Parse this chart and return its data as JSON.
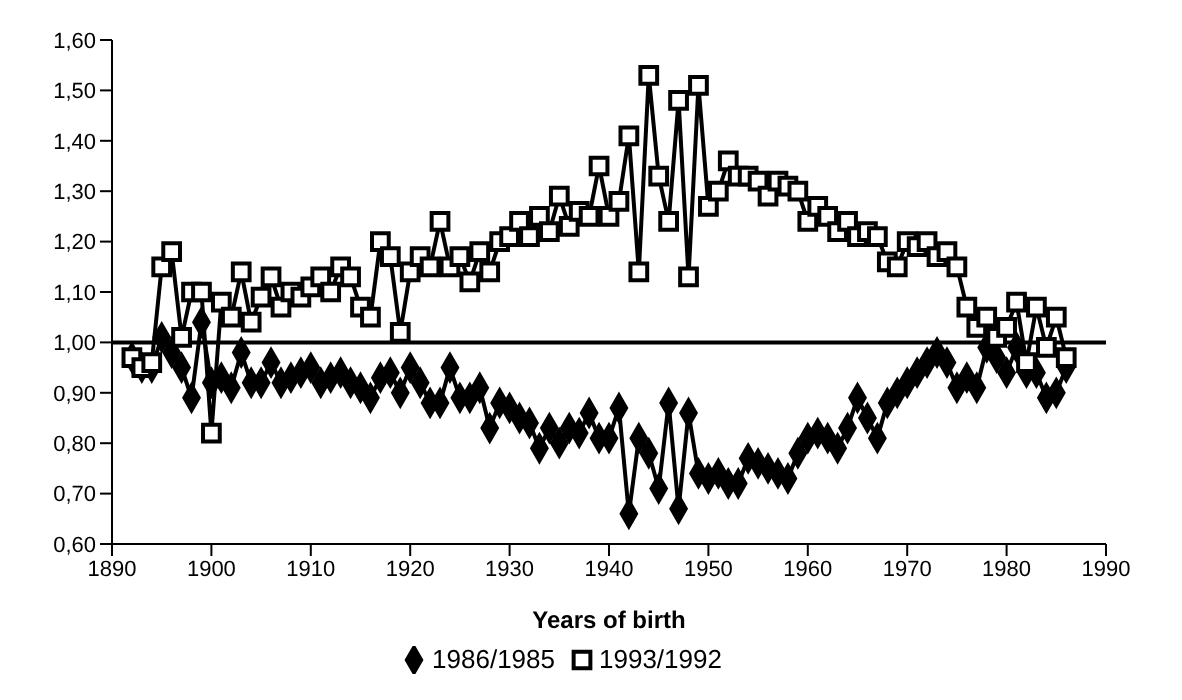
{
  "chart_data": {
    "type": "line",
    "xlabel": "Years of birth",
    "x": [
      1892,
      1893,
      1894,
      1895,
      1896,
      1897,
      1898,
      1899,
      1900,
      1901,
      1902,
      1903,
      1904,
      1905,
      1906,
      1907,
      1908,
      1909,
      1910,
      1911,
      1912,
      1913,
      1914,
      1915,
      1916,
      1917,
      1918,
      1919,
      1920,
      1921,
      1922,
      1923,
      1924,
      1925,
      1926,
      1927,
      1928,
      1929,
      1930,
      1931,
      1932,
      1933,
      1934,
      1935,
      1936,
      1937,
      1938,
      1939,
      1940,
      1941,
      1942,
      1943,
      1944,
      1945,
      1946,
      1947,
      1948,
      1949,
      1950,
      1951,
      1952,
      1953,
      1954,
      1955,
      1956,
      1957,
      1958,
      1959,
      1960,
      1961,
      1962,
      1963,
      1964,
      1965,
      1966,
      1967,
      1968,
      1969,
      1970,
      1971,
      1972,
      1973,
      1974,
      1975,
      1976,
      1977,
      1978,
      1979,
      1980,
      1981,
      1982,
      1983,
      1984,
      1985,
      1986
    ],
    "series": [
      {
        "name": "1986/1985",
        "color": "#000000",
        "marker": "diamond",
        "values": [
          0.97,
          0.95,
          0.95,
          1.01,
          0.98,
          0.95,
          0.89,
          1.04,
          0.92,
          0.93,
          0.91,
          0.98,
          0.92,
          0.92,
          0.96,
          0.92,
          0.93,
          0.94,
          0.95,
          0.92,
          0.93,
          0.94,
          0.92,
          0.91,
          0.89,
          0.93,
          0.94,
          0.9,
          0.95,
          0.92,
          0.88,
          0.88,
          0.95,
          0.89,
          0.89,
          0.91,
          0.83,
          0.88,
          0.87,
          0.85,
          0.84,
          0.79,
          0.83,
          0.8,
          0.83,
          0.82,
          0.86,
          0.81,
          0.81,
          0.87,
          0.66,
          0.81,
          0.78,
          0.71,
          0.88,
          0.67,
          0.86,
          0.74,
          0.73,
          0.74,
          0.72,
          0.72,
          0.77,
          0.76,
          0.75,
          0.74,
          0.73,
          0.78,
          0.81,
          0.82,
          0.81,
          0.79,
          0.83,
          0.89,
          0.85,
          0.81,
          0.88,
          0.9,
          0.92,
          0.94,
          0.96,
          0.98,
          0.96,
          0.91,
          0.93,
          0.91,
          0.99,
          0.97,
          0.94,
          0.99,
          0.94,
          0.94,
          0.89,
          0.9,
          0.95
        ]
      },
      {
        "name": "1993/1992",
        "color": "#000000",
        "marker": "square",
        "values": [
          0.97,
          0.95,
          0.96,
          1.15,
          1.18,
          1.01,
          1.1,
          1.1,
          0.82,
          1.08,
          1.05,
          1.14,
          1.04,
          1.09,
          1.13,
          1.07,
          1.1,
          1.09,
          1.11,
          1.13,
          1.1,
          1.15,
          1.13,
          1.07,
          1.05,
          1.2,
          1.17,
          1.02,
          1.14,
          1.17,
          1.15,
          1.24,
          1.15,
          1.17,
          1.12,
          1.18,
          1.14,
          1.2,
          1.21,
          1.24,
          1.21,
          1.25,
          1.22,
          1.29,
          1.23,
          1.26,
          1.25,
          1.35,
          1.25,
          1.28,
          1.41,
          1.14,
          1.53,
          1.33,
          1.24,
          1.48,
          1.13,
          1.51,
          1.27,
          1.3,
          1.36,
          1.33,
          1.33,
          1.32,
          1.29,
          1.32,
          1.31,
          1.3,
          1.24,
          1.27,
          1.25,
          1.22,
          1.24,
          1.21,
          1.22,
          1.21,
          1.16,
          1.15,
          1.2,
          1.19,
          1.2,
          1.17,
          1.18,
          1.15,
          1.07,
          1.03,
          1.05,
          1.01,
          1.03,
          1.08,
          0.96,
          1.07,
          0.99,
          1.05,
          0.97
        ]
      }
    ],
    "xlim": [
      1890,
      1990
    ],
    "xticks": [
      1890,
      1900,
      1910,
      1920,
      1930,
      1940,
      1950,
      1960,
      1970,
      1980,
      1990
    ],
    "ylim": [
      0.6,
      1.6
    ],
    "yticks": [
      {
        "value": 0.6,
        "label": "0,60"
      },
      {
        "value": 0.7,
        "label": "0,70"
      },
      {
        "value": 0.8,
        "label": "0,80"
      },
      {
        "value": 0.9,
        "label": "0,90"
      },
      {
        "value": 1.0,
        "label": "1,00"
      },
      {
        "value": 1.1,
        "label": "1,10"
      },
      {
        "value": 1.2,
        "label": "1,20"
      },
      {
        "value": 1.3,
        "label": "1,30"
      },
      {
        "value": 1.4,
        "label": "1,40"
      },
      {
        "value": 1.5,
        "label": "1,50"
      },
      {
        "value": 1.6,
        "label": "1,60"
      }
    ],
    "ref_lines": [
      {
        "axis": "y",
        "value": 1.0,
        "color": "#000000"
      }
    ],
    "grid": false,
    "legend": "bottom"
  }
}
